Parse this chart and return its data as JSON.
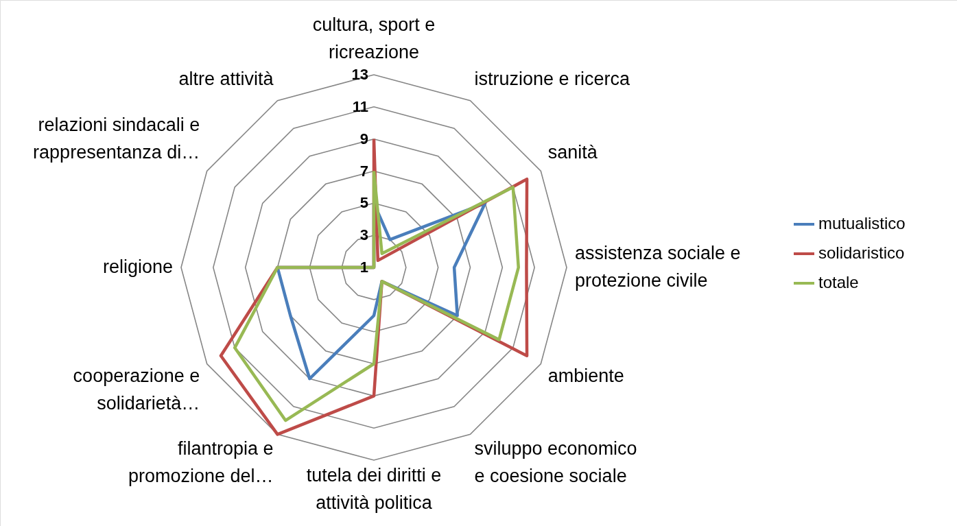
{
  "chart_data": {
    "type": "radar",
    "categories": [
      "cultura, sport e\nricreazione",
      "istruzione e ricerca",
      "sanità",
      "assistenza sociale e\nprotezione civile",
      "ambiente",
      "sviluppo economico\ne coesione sociale",
      "tutela dei diritti e\nattività politica",
      "filantropia e\npromozione del…",
      "cooperazione e\nsolidarietà…",
      "religione",
      "relazioni sindacali e\nrappresentanza di…",
      "altre attività"
    ],
    "series": [
      {
        "name": "mutualistico",
        "color": "#4a7ebb",
        "values": [
          5,
          3,
          9,
          6,
          7,
          2,
          4,
          9,
          7,
          7,
          1,
          1
        ]
      },
      {
        "name": "solidaristico",
        "color": "#be4b48",
        "values": [
          9,
          1.5,
          12,
          10.5,
          12,
          2,
          9,
          13,
          12,
          7,
          1,
          1
        ]
      },
      {
        "name": "totale",
        "color": "#98b954",
        "values": [
          7,
          2,
          11,
          10,
          10,
          2,
          7,
          12,
          11,
          7,
          1,
          1
        ]
      }
    ],
    "ylim": [
      1,
      13
    ],
    "yticks": [
      1,
      3,
      5,
      7,
      9,
      11,
      13
    ],
    "grid": true,
    "legend": "right"
  }
}
